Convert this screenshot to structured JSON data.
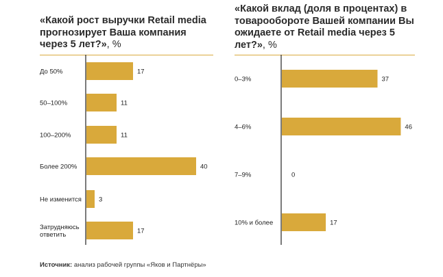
{
  "chart_data": [
    {
      "type": "bar",
      "orientation": "horizontal",
      "title": "«Какой рост выручки Retail media прогнозирует Ваша компания через 5 лет?»",
      "unit": ", %",
      "categories": [
        "До 50%",
        "50–100%",
        "100–200%",
        "Более 200%",
        "Не изменится",
        "Затрудняюсь ответить"
      ],
      "values": [
        17,
        11,
        11,
        40,
        3,
        17
      ],
      "bar_color": "#d9a93b",
      "grid": false
    },
    {
      "type": "bar",
      "orientation": "horizontal",
      "title": "«Какой вклад (доля в процентах) в товарообороте Вашей компании Вы ожидаете от Retail media через 5 лет?»",
      "unit": ", %",
      "categories": [
        "0–3%",
        "4–6%",
        "7–9%",
        "10% и более"
      ],
      "values": [
        37,
        46,
        0,
        17
      ],
      "bar_color": "#d9a93b",
      "grid": false
    }
  ],
  "source": {
    "label": "Источник:",
    "text": " анализ рабочей группы «Яков и Партнёры»"
  }
}
